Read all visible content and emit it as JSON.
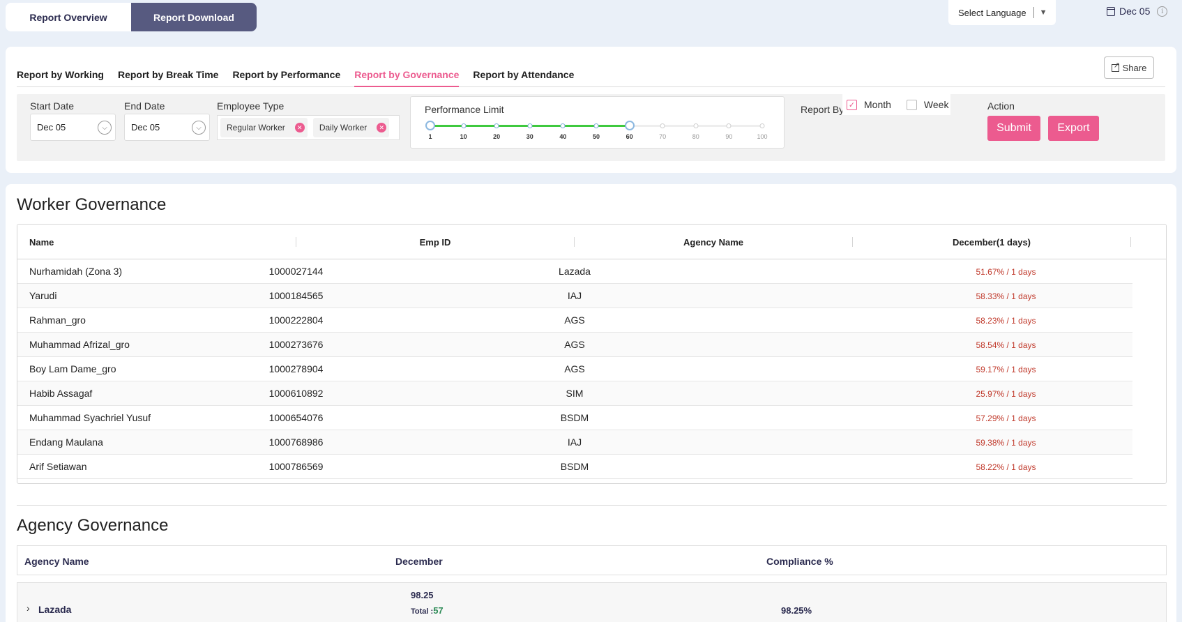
{
  "top_tabs": {
    "overview": "Report Overview",
    "download": "Report Download"
  },
  "language": {
    "label": "Select Language"
  },
  "header_date": "Dec 05",
  "report_tabs": [
    "Report by Working",
    "Report by Break Time",
    "Report by Performance",
    "Report by Governance",
    "Report by Attendance"
  ],
  "share_label": "Share",
  "filters": {
    "start_date_label": "Start Date",
    "start_date_value": "Dec 05",
    "end_date_label": "End Date",
    "end_date_value": "Dec 05",
    "employee_type_label": "Employee Type",
    "employee_types": [
      "Regular Worker",
      "Daily Worker"
    ],
    "performance_limit_label": "Performance Limit",
    "performance_marks": [
      "1",
      "10",
      "20",
      "30",
      "40",
      "50",
      "60",
      "70",
      "80",
      "90",
      "100"
    ],
    "performance_range": [
      1,
      60
    ],
    "report_by_label": "Report By",
    "month_label": "Month",
    "week_label": "Week",
    "month_checked": true,
    "week_checked": false,
    "action_label": "Action",
    "submit_label": "Submit",
    "export_label": "Export"
  },
  "worker_governance": {
    "title": "Worker Governance",
    "headers": {
      "name": "Name",
      "emp_id": "Emp ID",
      "agency": "Agency Name",
      "december": "December(1 days)"
    },
    "rows": [
      {
        "name": "Nurhamidah (Zona 3)",
        "emp_id": "1000027144",
        "agency": "Lazada",
        "value": "51.67% / 1 days"
      },
      {
        "name": "Yarudi",
        "emp_id": "1000184565",
        "agency": "IAJ",
        "value": "58.33% / 1 days"
      },
      {
        "name": "Rahman_gro",
        "emp_id": "1000222804",
        "agency": "AGS",
        "value": "58.23% / 1 days"
      },
      {
        "name": "Muhammad Afrizal_gro",
        "emp_id": "1000273676",
        "agency": "AGS",
        "value": "58.54% / 1 days"
      },
      {
        "name": "Boy Lam Dame_gro",
        "emp_id": "1000278904",
        "agency": "AGS",
        "value": "59.17% / 1 days"
      },
      {
        "name": "Habib Assagaf",
        "emp_id": "1000610892",
        "agency": "SIM",
        "value": "25.97% / 1 days"
      },
      {
        "name": "Muhammad Syachriel Yusuf",
        "emp_id": "1000654076",
        "agency": "BSDM",
        "value": "57.29% / 1 days"
      },
      {
        "name": "Endang Maulana",
        "emp_id": "1000768986",
        "agency": "IAJ",
        "value": "59.38% / 1 days"
      },
      {
        "name": "Arif Setiawan",
        "emp_id": "1000786569",
        "agency": "BSDM",
        "value": "58.22% / 1 days"
      }
    ]
  },
  "agency_governance": {
    "title": "Agency Governance",
    "headers": {
      "agency": "Agency Name",
      "december": "December",
      "compliance": "Compliance %"
    },
    "rows": [
      {
        "name": "Lazada",
        "value": "98.25",
        "total_label": "Total :",
        "total": "57",
        "compliance": "98.25%"
      }
    ]
  }
}
